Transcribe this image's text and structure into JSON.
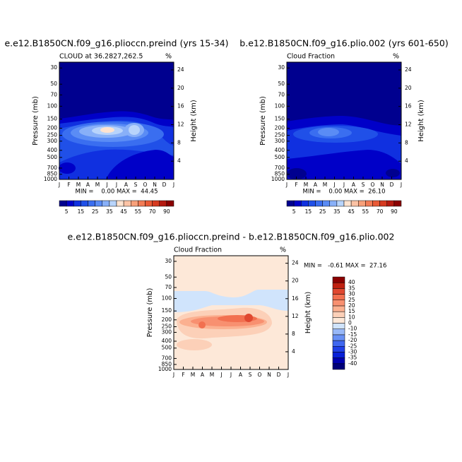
{
  "chart_data": [
    {
      "type": "contour",
      "title": "e.e12.B1850CN.f09_g16.plioccn.preind (yrs 15-34)",
      "subtitle": "CLOUD at 36.2827,262.5",
      "units": "%",
      "ylabel": "Pressure (mb)",
      "y2label": "Height (km)",
      "categories": [
        "J",
        "F",
        "M",
        "A",
        "M",
        "J",
        "J",
        "A",
        "S",
        "O",
        "N",
        "D",
        "J"
      ],
      "yscale": "log",
      "ylim": [
        1000,
        25
      ],
      "yticks": [
        30,
        50,
        70,
        100,
        150,
        200,
        250,
        300,
        400,
        500,
        700,
        850,
        1000
      ],
      "y2lim": [
        0,
        25.7
      ],
      "y2ticks": [
        4,
        8,
        12,
        16,
        20,
        24
      ],
      "annotation": "MIN =    0.00 MAX =  44.45",
      "colorbar": {
        "orientation": "horizontal",
        "levels": [
          5,
          10,
          15,
          20,
          25,
          30,
          35,
          40,
          45,
          50,
          55,
          60,
          70,
          80,
          90
        ],
        "ticks": [
          5,
          15,
          25,
          35,
          45,
          55,
          70,
          90
        ],
        "colors": [
          "#00008f",
          "#0000c8",
          "#1030e0",
          "#2050e8",
          "#3a6ef0",
          "#5a8cf5",
          "#88b0f8",
          "#b8d4fb",
          "#fde3cf",
          "#fbc3a5",
          "#f7a07a",
          "#f27c56",
          "#e95a36",
          "#d63a20",
          "#b51a10",
          "#8b0000"
        ]
      }
    },
    {
      "type": "contour",
      "title": "b.e12.B1850CN.f09_g16.plio.002 (yrs 601-650)",
      "subtitle": "Cloud Fraction",
      "units": "%",
      "ylabel": "Pressure (mb)",
      "y2label": "Height (km)",
      "categories": [
        "J",
        "F",
        "M",
        "A",
        "M",
        "J",
        "J",
        "A",
        "S",
        "O",
        "N",
        "D",
        "J"
      ],
      "yscale": "log",
      "ylim": [
        1000,
        25
      ],
      "yticks": [
        30,
        50,
        70,
        100,
        150,
        200,
        250,
        300,
        400,
        500,
        700,
        850,
        1000
      ],
      "y2lim": [
        0,
        25.7
      ],
      "y2ticks": [
        4,
        8,
        12,
        16,
        20,
        24
      ],
      "annotation": "MIN =    0.00 MAX =  26.10",
      "colorbar": {
        "orientation": "horizontal",
        "levels": [
          5,
          10,
          15,
          20,
          25,
          30,
          35,
          40,
          45,
          50,
          55,
          60,
          70,
          80,
          90
        ],
        "ticks": [
          5,
          15,
          25,
          35,
          45,
          55,
          70,
          90
        ],
        "colors": [
          "#00008f",
          "#0000c8",
          "#1030e0",
          "#2050e8",
          "#3a6ef0",
          "#5a8cf5",
          "#88b0f8",
          "#b8d4fb",
          "#fde3cf",
          "#fbc3a5",
          "#f7a07a",
          "#f27c56",
          "#e95a36",
          "#d63a20",
          "#b51a10",
          "#8b0000"
        ]
      }
    },
    {
      "type": "contour",
      "title": "e.e12.B1850CN.f09_g16.plioccn.preind - b.e12.B1850CN.f09_g16.plio.002",
      "subtitle": "Cloud Fraction",
      "units": "%",
      "ylabel": "Pressure (mb)",
      "y2label": "Height (km)",
      "categories": [
        "J",
        "F",
        "M",
        "A",
        "M",
        "J",
        "J",
        "A",
        "S",
        "O",
        "N",
        "D",
        "J"
      ],
      "yscale": "log",
      "ylim": [
        1000,
        25
      ],
      "yticks": [
        30,
        50,
        70,
        100,
        150,
        200,
        250,
        300,
        400,
        500,
        700,
        850,
        1000
      ],
      "y2lim": [
        0,
        25.7
      ],
      "y2ticks": [
        4,
        8,
        12,
        16,
        20,
        24
      ],
      "annotation": "MIN =   -0.61 MAX =  27.16",
      "colorbar": {
        "orientation": "vertical",
        "levels": [
          -40,
          -35,
          -30,
          -25,
          -20,
          -15,
          -10,
          0,
          10,
          15,
          20,
          25,
          30,
          35,
          40
        ],
        "ticks": [
          -40,
          -35,
          -30,
          -25,
          -20,
          -15,
          -10,
          0,
          10,
          15,
          20,
          25,
          30,
          35,
          40
        ],
        "colors": [
          "#00007a",
          "#0000b0",
          "#0820d8",
          "#2040e8",
          "#4068f0",
          "#6890f5",
          "#98b8f8",
          "#d0e4fc",
          "#fde8d8",
          "#fcd0b8",
          "#fbb090",
          "#f89070",
          "#f27050",
          "#e04830",
          "#c02010",
          "#8b0000"
        ]
      }
    }
  ]
}
